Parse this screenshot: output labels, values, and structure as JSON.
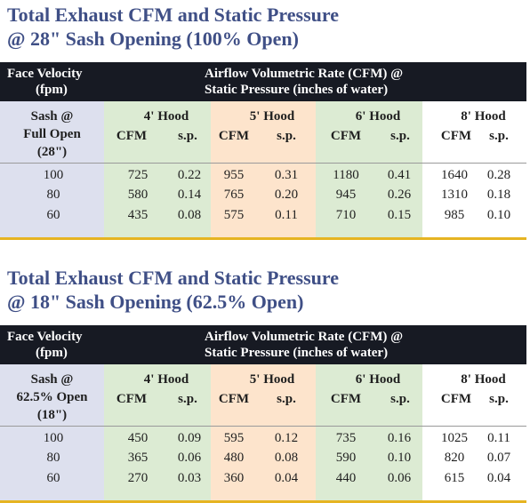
{
  "tables": [
    {
      "title_line1": "Total Exhaust CFM and Static Pressure",
      "title_line2": "@ 28\" Sash Opening (100% Open)",
      "header_face_velocity_line1": "Face Velocity",
      "header_face_velocity_line2": "(fpm)",
      "header_airflow_line1": "Airflow Volumetric Rate (CFM) @",
      "header_airflow_line2": "Static Pressure (inches of water)",
      "sash_label_line1": "Sash @",
      "sash_label_line2": "Full Open",
      "sash_label_line3": "(28\")",
      "hoods": [
        "4' Hood",
        "5' Hood",
        "6' Hood",
        "8' Hood"
      ],
      "cfm_label": "CFM",
      "sp_label": "s.p.",
      "rows": [
        {
          "velocity": "100",
          "values": [
            "725",
            "0.22",
            "955",
            "0.31",
            "1180",
            "0.41",
            "1640",
            "0.28"
          ]
        },
        {
          "velocity": "80",
          "values": [
            "580",
            "0.14",
            "765",
            "0.20",
            "945",
            "0.26",
            "1310",
            "0.18"
          ]
        },
        {
          "velocity": "60",
          "values": [
            "435",
            "0.08",
            "575",
            "0.11",
            "710",
            "0.15",
            "985",
            "0.10"
          ]
        }
      ]
    },
    {
      "title_line1": "Total Exhaust CFM and Static Pressure",
      "title_line2": "@ 18\" Sash Opening (62.5% Open)",
      "header_face_velocity_line1": "Face Velocity",
      "header_face_velocity_line2": "(fpm)",
      "header_airflow_line1": "Airflow Volumetric Rate (CFM) @",
      "header_airflow_line2": "Static Pressure (inches of water)",
      "sash_label_line1": "Sash @",
      "sash_label_line2": "62.5% Open",
      "sash_label_line3": "(18\")",
      "hoods": [
        "4' Hood",
        "5' Hood",
        "6' Hood",
        "8' Hood"
      ],
      "cfm_label": "CFM",
      "sp_label": "s.p.",
      "rows": [
        {
          "velocity": "100",
          "values": [
            "450",
            "0.09",
            "595",
            "0.12",
            "735",
            "0.16",
            "1025",
            "0.11"
          ]
        },
        {
          "velocity": "80",
          "values": [
            "365",
            "0.06",
            "480",
            "0.08",
            "590",
            "0.10",
            "820",
            "0.07"
          ]
        },
        {
          "velocity": "60",
          "values": [
            "270",
            "0.03",
            "360",
            "0.04",
            "440",
            "0.06",
            "615",
            "0.04"
          ]
        }
      ]
    }
  ],
  "colors": {
    "title": "#3f4f86",
    "header_bg": "#171a23",
    "sash_band": "#dde0ee",
    "green_band": "#dcebd3",
    "orange_band": "#fde4cc",
    "gold_rule": "#e6b422"
  }
}
